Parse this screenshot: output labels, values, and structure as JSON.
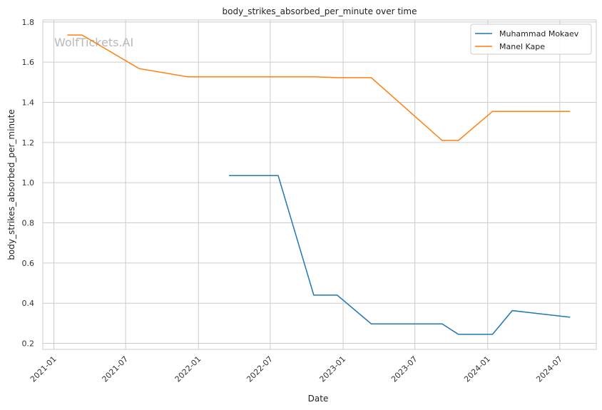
{
  "chart_data": {
    "type": "line",
    "title": "body_strikes_absorbed_per_minute over time",
    "xlabel": "Date",
    "ylabel": "body_strikes_absorbed_per_minute",
    "watermark": "WolfTickets.AI",
    "xlim": [
      "2020-12-04",
      "2024-10-01"
    ],
    "ylim": [
      0.17,
      1.81
    ],
    "x_ticks": [
      "2021-01",
      "2021-07",
      "2022-01",
      "2022-07",
      "2023-01",
      "2023-07",
      "2024-01",
      "2024-07"
    ],
    "y_ticks": [
      0.2,
      0.4,
      0.6,
      0.8,
      1.0,
      1.2,
      1.4,
      1.6,
      1.8
    ],
    "grid": true,
    "legend_position": "top-right",
    "series": [
      {
        "name": "Muhammad Mokaev",
        "color": "#1f77b4",
        "x": [
          "2022-03-19",
          "2022-07-21",
          "2022-10-19",
          "2022-12-17",
          "2023-03-13",
          "2023-09-08",
          "2023-10-19",
          "2024-01-13",
          "2024-03-03",
          "2024-07-27"
        ],
        "y": [
          1.035,
          1.035,
          0.44,
          0.44,
          0.297,
          0.297,
          0.245,
          0.245,
          0.363,
          0.33
        ]
      },
      {
        "name": "Manel Kape",
        "color": "#ff7f0e",
        "x": [
          "2021-02-04",
          "2021-03-13",
          "2021-08-04",
          "2021-12-04",
          "2022-10-19",
          "2022-12-17",
          "2023-03-13",
          "2023-09-08",
          "2023-10-19",
          "2024-01-13",
          "2024-07-27"
        ],
        "y": [
          1.735,
          1.735,
          1.568,
          1.527,
          1.527,
          1.523,
          1.523,
          1.21,
          1.21,
          1.355,
          1.355
        ]
      }
    ]
  }
}
